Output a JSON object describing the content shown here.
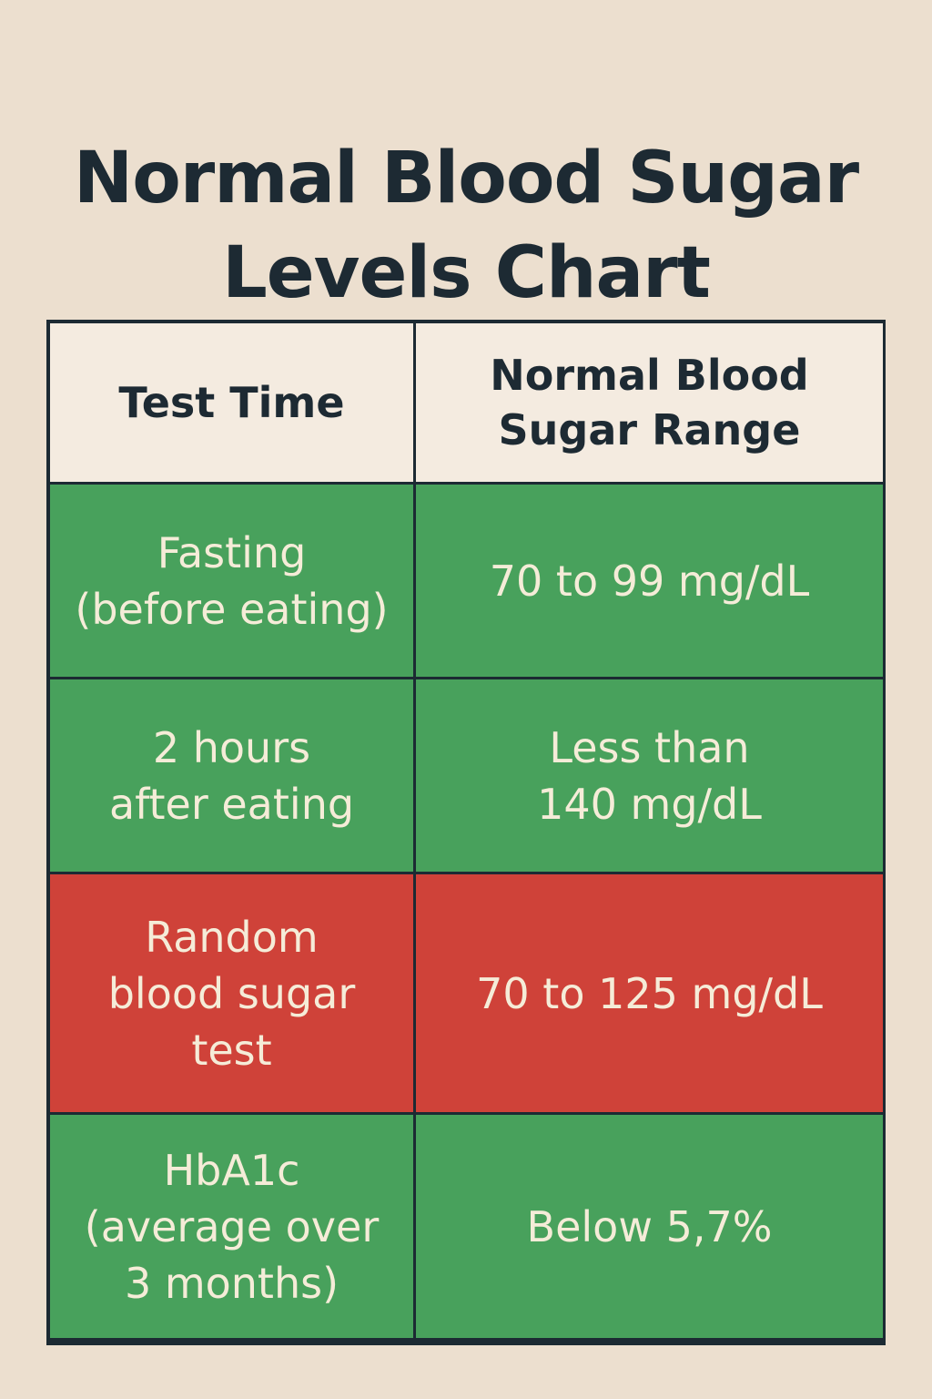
{
  "title": {
    "line1": "Normal Blood Sugar",
    "line2": "Levels Chart"
  },
  "table": {
    "headers": {
      "test_time": "Test Time",
      "range": "Normal Blood\nSugar Range"
    },
    "rows": [
      {
        "test": "Fasting\n(before eating)",
        "range": "70 to 99 mg/dL",
        "status_color": "#48a15c"
      },
      {
        "test": "2 hours\nafter eating",
        "range": "Less than\n140 mg/dL",
        "status_color": "#48a15c"
      },
      {
        "test": "Random\nblood sugar\ntest",
        "range": "70 to 125 mg/dL",
        "status_color": "#cf4239"
      },
      {
        "test": "HbA1c\n(average over\n3 months)",
        "range": "Below 5,7%",
        "status_color": "#48a15c"
      }
    ]
  },
  "colors": {
    "background": "#ecdfcf",
    "header_cell": "#f4ebe0",
    "normal": "#48a15c",
    "alert": "#cf4239",
    "border": "#1c2a33",
    "text_dark": "#1d2a33",
    "text_light": "#f5ecd8"
  }
}
